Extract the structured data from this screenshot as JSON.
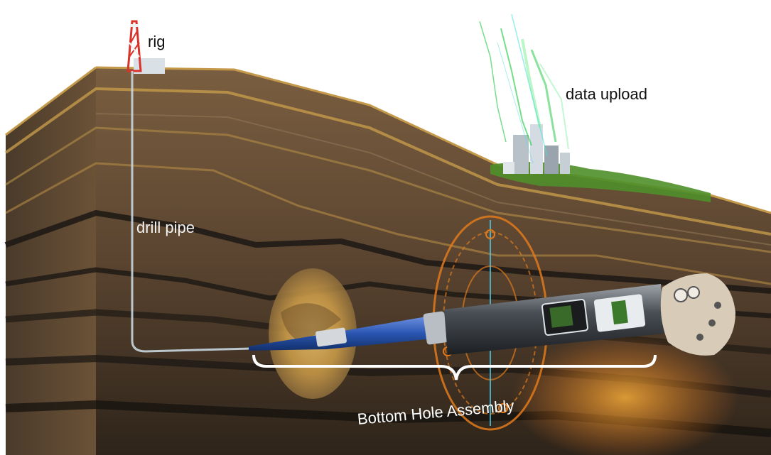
{
  "labels": {
    "rig": "rig",
    "data_upload": "data upload",
    "drill_pipe": "drill pipe",
    "bottom_hole_assembly": "Bottom Hole Assembly"
  },
  "colors": {
    "earth_dark": "#3a2c20",
    "earth_mid": "#6b5237",
    "earth_light": "#8c7050",
    "strata_gold": "#c49a4a",
    "strata_black": "#1c1814",
    "compass_orange": "#e07a1c",
    "tool_blue": "#2a55b0",
    "bracket": "#ffffff",
    "grass": "#4f8f2a",
    "data_green": "#3ccf5a",
    "rig_red": "#d9332b"
  },
  "icons": {
    "rig": "drilling-rig-icon",
    "city": "city-buildings-icon",
    "tool": "bottom-hole-assembly-icon",
    "bit": "drill-bit-icon",
    "compass": "compass-ring-icon"
  }
}
